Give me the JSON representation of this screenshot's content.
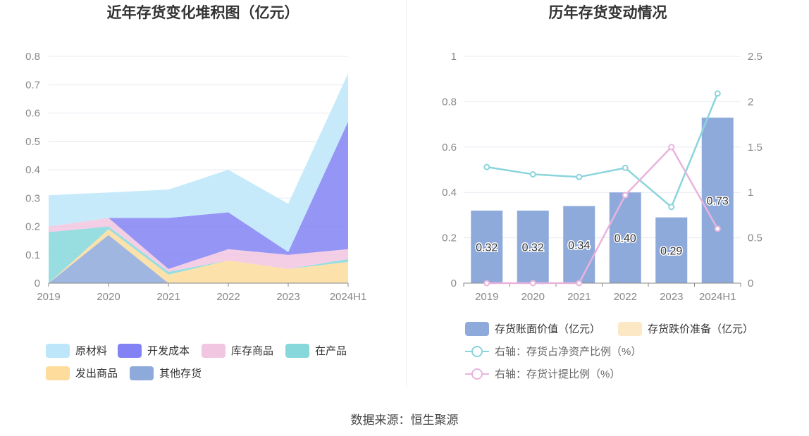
{
  "source_text": "数据来源：恒生聚源",
  "chart_data": [
    {
      "type": "area",
      "stacked": true,
      "title": "近年存货变化堆积图（亿元）",
      "categories": [
        "2019",
        "2020",
        "2021",
        "2022",
        "2023",
        "2024H1"
      ],
      "ylim": [
        0,
        0.8
      ],
      "yticks": [
        "0",
        "0.1",
        "0.2",
        "0.3",
        "0.4",
        "0.5",
        "0.6",
        "0.7",
        "0.8"
      ],
      "grid": true,
      "legend_position": "bottom",
      "series": [
        {
          "name": "其他存货",
          "color": "#8eaadb",
          "values": [
            0.0,
            0.17,
            0.0,
            0.0,
            0.0,
            0.0
          ]
        },
        {
          "name": "发出商品",
          "color": "#fddc9c",
          "values": [
            0.0,
            0.02,
            0.03,
            0.08,
            0.05,
            0.075
          ]
        },
        {
          "name": "在产品",
          "color": "#86d8da",
          "values": [
            0.18,
            0.01,
            0.01,
            0.0,
            0.0,
            0.01
          ]
        },
        {
          "name": "库存商品",
          "color": "#f1c6e1",
          "values": [
            0.02,
            0.03,
            0.01,
            0.04,
            0.05,
            0.035
          ]
        },
        {
          "name": "开发成本",
          "color": "#8382f4",
          "values": [
            0.0,
            0.0,
            0.18,
            0.13,
            0.01,
            0.45
          ]
        },
        {
          "name": "原材料",
          "color": "#bde6fa",
          "values": [
            0.11,
            0.09,
            0.1,
            0.15,
            0.17,
            0.17
          ]
        }
      ],
      "legend_order": [
        "原材料",
        "开发成本",
        "库存商品",
        "在产品",
        "发出商品",
        "其他存货"
      ]
    },
    {
      "type": "bar",
      "title": "历年存货变动情况",
      "categories": [
        "2019",
        "2020",
        "2021",
        "2022",
        "2023",
        "2024H1"
      ],
      "ylim_left": [
        0,
        1
      ],
      "yticks_left": [
        "0",
        "0.2",
        "0.4",
        "0.6",
        "0.8",
        "1"
      ],
      "ylim_right": [
        0,
        2.5
      ],
      "yticks_right": [
        "0",
        "0.5",
        "1",
        "1.5",
        "2",
        "2.5"
      ],
      "grid": true,
      "legend_position": "bottom",
      "series": [
        {
          "name": "存货账面价值（亿元）",
          "type": "bar",
          "axis": "left",
          "color": "#8eaadb",
          "values": [
            0.32,
            0.32,
            0.34,
            0.4,
            0.29,
            0.73
          ],
          "labels": [
            "0.32",
            "0.32",
            "0.34",
            "0.40",
            "0.29",
            "0.73"
          ]
        },
        {
          "name": "存货跌价准备（亿元）",
          "type": "bar",
          "axis": "left",
          "color": "#fde8c6",
          "values": [
            0,
            0,
            0,
            0,
            0,
            0
          ]
        },
        {
          "name": "右轴：存货占净资产比例（%）",
          "type": "line",
          "axis": "right",
          "color": "#8ad4dc",
          "values": [
            1.28,
            1.2,
            1.17,
            1.27,
            0.84,
            2.09
          ]
        },
        {
          "name": "右轴：存货计提比例（%）",
          "type": "line",
          "axis": "right",
          "color": "#e9b3dc",
          "values": [
            0.0,
            0.0,
            0.0,
            0.97,
            1.5,
            0.6
          ]
        }
      ]
    }
  ]
}
